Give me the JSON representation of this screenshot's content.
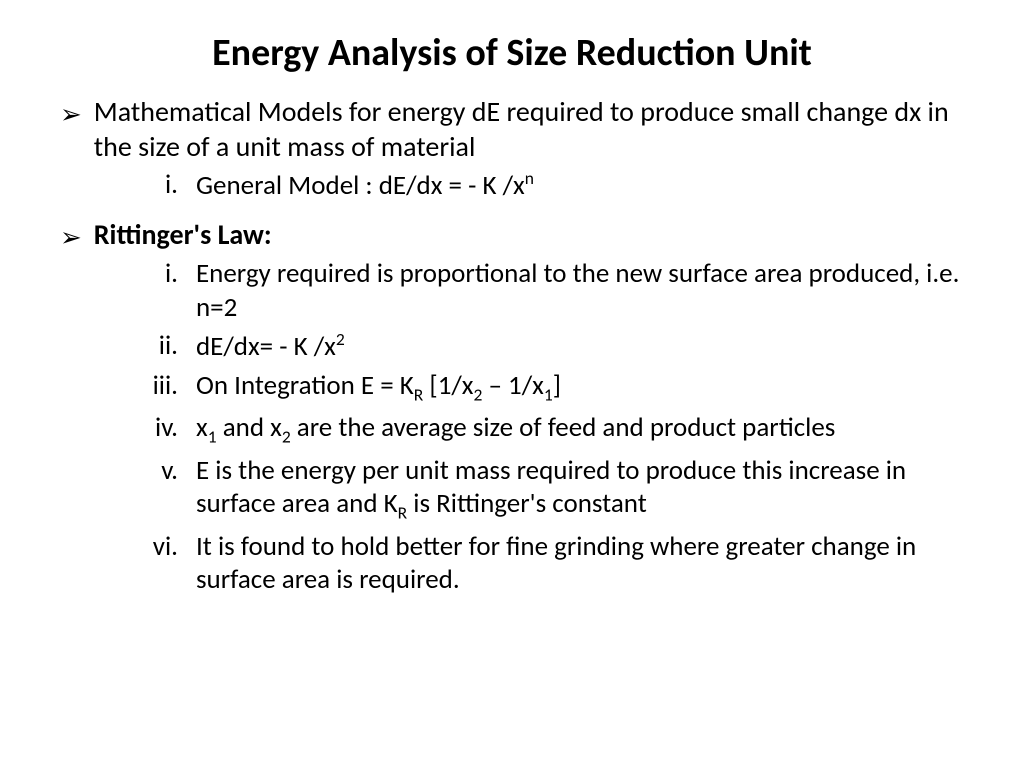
{
  "title": "Energy Analysis of Size Reduction Unit",
  "bullet1": {
    "text": "Mathematical Models for energy dE required to produce small change dx in the size of a unit mass of material",
    "items": [
      {
        "roman": "i.",
        "text_html": "General Model : dE/dx = - K /x<sup>n</sup>"
      }
    ]
  },
  "bullet2": {
    "heading": "Rittinger's Law:",
    "items": [
      {
        "roman": "i.",
        "text_html": "Energy required is proportional to the new surface area produced, i.e. n=2"
      },
      {
        "roman": "ii.",
        "text_html": "dE/dx= - K /x<sup>2</sup>"
      },
      {
        "roman": "iii.",
        "text_html": "On Integration E = K<sub>R</sub> [1/x<sub>2</sub> – 1/x<sub>1</sub>]"
      },
      {
        "roman": "iv.",
        "text_html": "x<sub>1</sub> and x<sub>2</sub>  are the average size of feed and product particles"
      },
      {
        "roman": "v.",
        "text_html": "E is the energy per unit mass required to produce this increase in surface area and K<sub>R</sub>  is Rittinger's constant"
      },
      {
        "roman": "vi.",
        "text_html": "It is found to hold better for fine grinding where greater change in surface area is required."
      }
    ]
  },
  "arrow_glyph": "➢"
}
